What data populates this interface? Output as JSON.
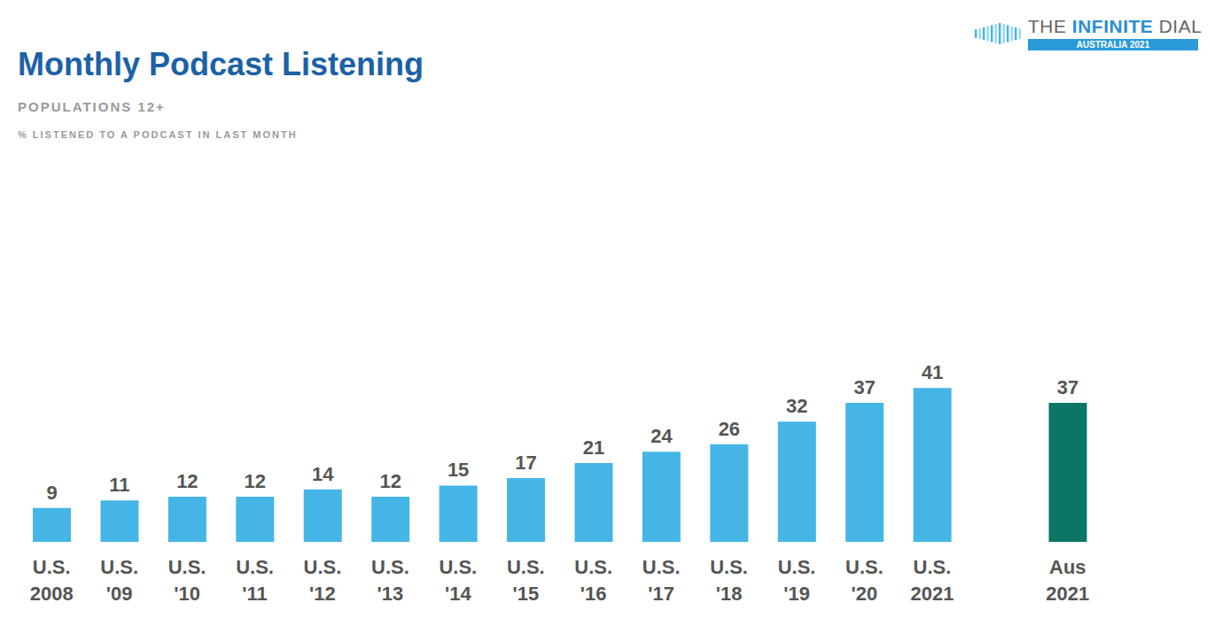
{
  "chart_data": {
    "type": "bar",
    "title": "Monthly Podcast Listening",
    "subtitle": "POPULATIONS 12+",
    "annotations": [
      "% LISTENED TO A PODCAST IN LAST MONTH"
    ],
    "categories": [
      "U.S.\n2008",
      "U.S.\n'09",
      "U.S.\n'10",
      "U.S.\n'11",
      "U.S.\n'12",
      "U.S.\n'13",
      "U.S.\n'14",
      "U.S.\n'15",
      "U.S.\n'16",
      "U.S.\n'17",
      "U.S.\n'18",
      "U.S.\n'19",
      "U.S.\n'20",
      "U.S.\n2021",
      null,
      "Aus\n2021"
    ],
    "values": [
      9,
      11,
      12,
      12,
      14,
      12,
      15,
      17,
      21,
      24,
      26,
      32,
      37,
      41,
      null,
      37
    ],
    "colors": [
      "#45b5e6",
      "#45b5e6",
      "#45b5e6",
      "#45b5e6",
      "#45b5e6",
      "#45b5e6",
      "#45b5e6",
      "#45b5e6",
      "#45b5e6",
      "#45b5e6",
      "#45b5e6",
      "#45b5e6",
      "#45b5e6",
      "#45b5e6",
      "#45b5e6",
      "#0b7566"
    ],
    "ylim": [
      0,
      100
    ],
    "yticks": [
      0,
      100
    ],
    "grid": false,
    "data_labels": true,
    "tick_labels": "x"
  },
  "logo": {
    "words": [
      "THE",
      "INFINITE",
      "DIAL"
    ],
    "edition": "AUSTRALIA 2021"
  }
}
